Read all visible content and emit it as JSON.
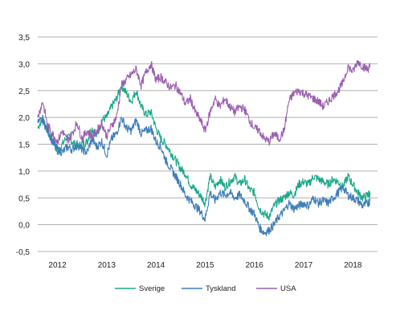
{
  "chart_data": {
    "type": "line",
    "title": "",
    "xlabel": "",
    "ylabel": "",
    "ylim": [
      -0.5,
      3.5
    ],
    "yticks": [
      -0.5,
      0.0,
      0.5,
      1.0,
      1.5,
      2.0,
      2.5,
      3.0,
      3.5
    ],
    "ytick_labels": [
      "-0,5",
      "0,0",
      "0,5",
      "1,0",
      "1,5",
      "2,0",
      "2,5",
      "3,0",
      "3,5"
    ],
    "xlim": [
      2011.6,
      2018.5
    ],
    "x_tick_labels": [
      {
        "x": 2012.0,
        "label": "2012"
      },
      {
        "x": 2013.0,
        "label": "2013"
      },
      {
        "x": 2014.0,
        "label": "2014"
      },
      {
        "x": 2015.0,
        "label": "2015"
      },
      {
        "x": 2016.0,
        "label": "2016"
      },
      {
        "x": 2017.0,
        "label": "2017"
      },
      {
        "x": 2018.0,
        "label": "2018"
      }
    ],
    "grid": "horizontal",
    "legend_position": "bottom",
    "colors": {
      "sverige": "#1aa88a",
      "tyskland": "#3d7cb8",
      "usa": "#9a5fb0",
      "grid": "#b0b0b0"
    },
    "series": [
      {
        "name": "Sverige",
        "color": "#1aa88a",
        "points": [
          [
            2011.6,
            1.8
          ],
          [
            2011.7,
            2.0
          ],
          [
            2011.8,
            1.75
          ],
          [
            2011.9,
            1.6
          ],
          [
            2012.0,
            1.35
          ],
          [
            2012.1,
            1.5
          ],
          [
            2012.2,
            1.65
          ],
          [
            2012.3,
            1.55
          ],
          [
            2012.4,
            1.45
          ],
          [
            2012.5,
            1.5
          ],
          [
            2012.6,
            1.55
          ],
          [
            2012.7,
            1.8
          ],
          [
            2012.8,
            1.65
          ],
          [
            2012.9,
            1.95
          ],
          [
            2013.0,
            2.0
          ],
          [
            2013.1,
            2.2
          ],
          [
            2013.2,
            2.35
          ],
          [
            2013.3,
            2.6
          ],
          [
            2013.4,
            2.45
          ],
          [
            2013.5,
            2.3
          ],
          [
            2013.6,
            2.5
          ],
          [
            2013.7,
            2.2
          ],
          [
            2013.8,
            2.05
          ],
          [
            2013.9,
            2.1
          ],
          [
            2014.0,
            1.8
          ],
          [
            2014.1,
            1.6
          ],
          [
            2014.2,
            1.5
          ],
          [
            2014.3,
            1.35
          ],
          [
            2014.4,
            1.2
          ],
          [
            2014.5,
            1.05
          ],
          [
            2014.6,
            0.95
          ],
          [
            2014.7,
            0.75
          ],
          [
            2014.8,
            0.65
          ],
          [
            2014.9,
            0.55
          ],
          [
            2015.0,
            0.4
          ],
          [
            2015.1,
            0.9
          ],
          [
            2015.2,
            0.7
          ],
          [
            2015.3,
            0.85
          ],
          [
            2015.4,
            0.7
          ],
          [
            2015.5,
            0.8
          ],
          [
            2015.6,
            0.9
          ],
          [
            2015.7,
            0.75
          ],
          [
            2015.8,
            0.85
          ],
          [
            2015.9,
            0.65
          ],
          [
            2016.0,
            0.6
          ],
          [
            2016.1,
            0.3
          ],
          [
            2016.2,
            0.2
          ],
          [
            2016.3,
            0.15
          ],
          [
            2016.4,
            0.35
          ],
          [
            2016.5,
            0.45
          ],
          [
            2016.6,
            0.5
          ],
          [
            2016.7,
            0.6
          ],
          [
            2016.8,
            0.55
          ],
          [
            2016.9,
            0.75
          ],
          [
            2017.0,
            0.8
          ],
          [
            2017.1,
            0.75
          ],
          [
            2017.2,
            0.9
          ],
          [
            2017.3,
            0.85
          ],
          [
            2017.4,
            0.8
          ],
          [
            2017.5,
            0.75
          ],
          [
            2017.6,
            0.85
          ],
          [
            2017.7,
            0.8
          ],
          [
            2017.8,
            0.7
          ],
          [
            2017.9,
            0.9
          ],
          [
            2018.0,
            0.75
          ],
          [
            2018.1,
            0.6
          ],
          [
            2018.2,
            0.5
          ],
          [
            2018.3,
            0.55
          ],
          [
            2018.35,
            0.6
          ]
        ]
      },
      {
        "name": "Tyskland",
        "color": "#3d7cb8",
        "points": [
          [
            2011.6,
            1.9
          ],
          [
            2011.7,
            1.95
          ],
          [
            2011.8,
            1.75
          ],
          [
            2011.9,
            1.55
          ],
          [
            2012.0,
            1.4
          ],
          [
            2012.1,
            1.35
          ],
          [
            2012.2,
            1.45
          ],
          [
            2012.3,
            1.4
          ],
          [
            2012.4,
            1.5
          ],
          [
            2012.5,
            1.4
          ],
          [
            2012.6,
            1.35
          ],
          [
            2012.7,
            1.6
          ],
          [
            2012.8,
            1.45
          ],
          [
            2012.9,
            1.55
          ],
          [
            2013.0,
            1.3
          ],
          [
            2013.1,
            1.6
          ],
          [
            2013.2,
            1.7
          ],
          [
            2013.3,
            2.0
          ],
          [
            2013.4,
            1.8
          ],
          [
            2013.5,
            1.75
          ],
          [
            2013.6,
            1.95
          ],
          [
            2013.7,
            1.7
          ],
          [
            2013.8,
            1.75
          ],
          [
            2013.9,
            1.8
          ],
          [
            2014.0,
            1.55
          ],
          [
            2014.1,
            1.45
          ],
          [
            2014.2,
            1.2
          ],
          [
            2014.3,
            1.05
          ],
          [
            2014.4,
            0.9
          ],
          [
            2014.5,
            0.75
          ],
          [
            2014.6,
            0.55
          ],
          [
            2014.7,
            0.45
          ],
          [
            2014.8,
            0.35
          ],
          [
            2014.9,
            0.25
          ],
          [
            2015.0,
            0.1
          ],
          [
            2015.1,
            0.6
          ],
          [
            2015.2,
            0.45
          ],
          [
            2015.3,
            0.6
          ],
          [
            2015.4,
            0.55
          ],
          [
            2015.5,
            0.6
          ],
          [
            2015.6,
            0.5
          ],
          [
            2015.7,
            0.55
          ],
          [
            2015.8,
            0.45
          ],
          [
            2015.9,
            0.3
          ],
          [
            2016.0,
            0.2
          ],
          [
            2016.1,
            -0.05
          ],
          [
            2016.2,
            -0.15
          ],
          [
            2016.3,
            -0.1
          ],
          [
            2016.4,
            0.0
          ],
          [
            2016.5,
            0.15
          ],
          [
            2016.6,
            0.25
          ],
          [
            2016.7,
            0.4
          ],
          [
            2016.8,
            0.3
          ],
          [
            2016.9,
            0.35
          ],
          [
            2017.0,
            0.4
          ],
          [
            2017.1,
            0.35
          ],
          [
            2017.2,
            0.5
          ],
          [
            2017.3,
            0.4
          ],
          [
            2017.4,
            0.45
          ],
          [
            2017.5,
            0.4
          ],
          [
            2017.6,
            0.5
          ],
          [
            2017.7,
            0.6
          ],
          [
            2017.8,
            0.7
          ],
          [
            2017.9,
            0.55
          ],
          [
            2018.0,
            0.5
          ],
          [
            2018.1,
            0.45
          ],
          [
            2018.2,
            0.35
          ],
          [
            2018.3,
            0.4
          ],
          [
            2018.35,
            0.45
          ]
        ]
      },
      {
        "name": "USA",
        "color": "#9a5fb0",
        "points": [
          [
            2011.6,
            2.0
          ],
          [
            2011.7,
            2.3
          ],
          [
            2011.8,
            1.85
          ],
          [
            2011.9,
            1.7
          ],
          [
            2012.0,
            1.55
          ],
          [
            2012.1,
            1.75
          ],
          [
            2012.2,
            1.55
          ],
          [
            2012.3,
            1.7
          ],
          [
            2012.4,
            1.9
          ],
          [
            2012.5,
            1.6
          ],
          [
            2012.6,
            1.75
          ],
          [
            2012.7,
            1.65
          ],
          [
            2012.8,
            1.75
          ],
          [
            2012.9,
            1.9
          ],
          [
            2013.0,
            1.65
          ],
          [
            2013.1,
            1.85
          ],
          [
            2013.2,
            2.0
          ],
          [
            2013.3,
            2.6
          ],
          [
            2013.4,
            2.7
          ],
          [
            2013.5,
            2.8
          ],
          [
            2013.6,
            2.9
          ],
          [
            2013.7,
            2.6
          ],
          [
            2013.8,
            2.85
          ],
          [
            2013.9,
            3.0
          ],
          [
            2014.0,
            2.7
          ],
          [
            2014.1,
            2.75
          ],
          [
            2014.2,
            2.65
          ],
          [
            2014.3,
            2.55
          ],
          [
            2014.4,
            2.6
          ],
          [
            2014.5,
            2.45
          ],
          [
            2014.6,
            2.25
          ],
          [
            2014.7,
            2.35
          ],
          [
            2014.8,
            2.1
          ],
          [
            2014.9,
            1.95
          ],
          [
            2015.0,
            1.75
          ],
          [
            2015.1,
            2.1
          ],
          [
            2015.2,
            2.35
          ],
          [
            2015.3,
            2.2
          ],
          [
            2015.4,
            2.35
          ],
          [
            2015.5,
            2.2
          ],
          [
            2015.6,
            2.1
          ],
          [
            2015.7,
            2.2
          ],
          [
            2015.8,
            2.15
          ],
          [
            2015.9,
            1.95
          ],
          [
            2016.0,
            1.8
          ],
          [
            2016.1,
            1.75
          ],
          [
            2016.2,
            1.6
          ],
          [
            2016.3,
            1.55
          ],
          [
            2016.4,
            1.7
          ],
          [
            2016.5,
            1.6
          ],
          [
            2016.6,
            1.75
          ],
          [
            2016.7,
            2.3
          ],
          [
            2016.8,
            2.45
          ],
          [
            2016.9,
            2.5
          ],
          [
            2017.0,
            2.45
          ],
          [
            2017.1,
            2.4
          ],
          [
            2017.2,
            2.35
          ],
          [
            2017.3,
            2.3
          ],
          [
            2017.4,
            2.2
          ],
          [
            2017.5,
            2.3
          ],
          [
            2017.6,
            2.4
          ],
          [
            2017.7,
            2.5
          ],
          [
            2017.8,
            2.65
          ],
          [
            2017.9,
            2.95
          ],
          [
            2018.0,
            2.85
          ],
          [
            2018.1,
            3.05
          ],
          [
            2018.2,
            2.95
          ],
          [
            2018.3,
            2.9
          ],
          [
            2018.35,
            2.95
          ]
        ]
      }
    ]
  }
}
